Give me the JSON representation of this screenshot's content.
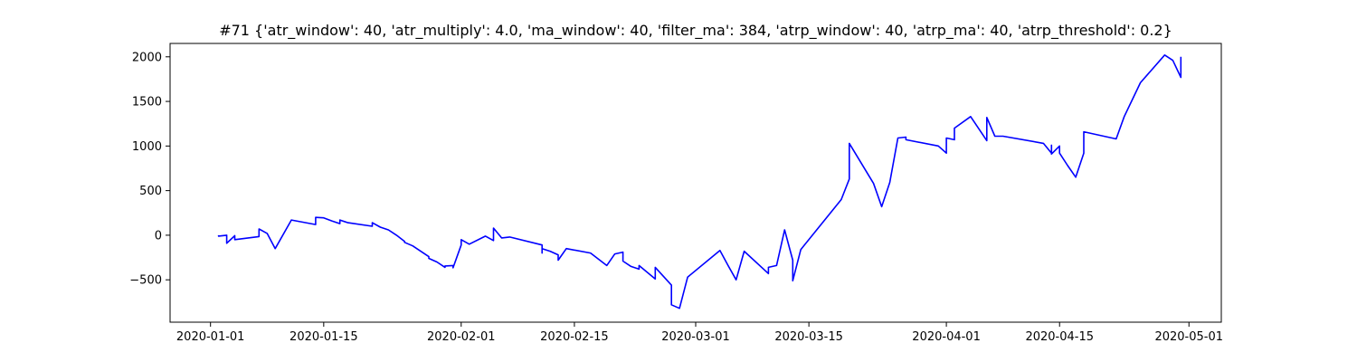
{
  "chart_data": {
    "type": "line",
    "title": "#71 {'atr_window': 40, 'atr_multiply': 4.0, 'ma_window': 40, 'filter_ma': 384, 'atrp_window': 40, 'atrp_ma': 40, 'atrp_threshold': 0.2}",
    "xlabel": "",
    "ylabel": "",
    "x_axis": "date",
    "xlim": [
      "2019-12-27",
      "2020-05-05"
    ],
    "ylim": [
      -975,
      2150
    ],
    "xticks": [
      "2020-01-01",
      "2020-01-15",
      "2020-02-01",
      "2020-02-15",
      "2020-03-01",
      "2020-03-15",
      "2020-04-01",
      "2020-04-15",
      "2020-05-01"
    ],
    "yticks": [
      -500,
      0,
      500,
      1000,
      1500,
      2000
    ],
    "grid": false,
    "legend": "none",
    "colors": {
      "line": "#0000ff",
      "axes": "#000000",
      "background": "#ffffff"
    },
    "series": [
      {
        "points": [
          [
            "2020-01-02",
            0
          ],
          [
            "2020-01-02",
            -10
          ],
          [
            "2020-01-03",
            0
          ],
          [
            "2020-01-03",
            -50
          ],
          [
            "2020-01-03",
            -90
          ],
          [
            "2020-01-04",
            -5
          ],
          [
            "2020-01-04",
            -50
          ],
          [
            "2020-01-07",
            -15
          ],
          [
            "2020-01-07",
            70
          ],
          [
            "2020-01-08",
            20
          ],
          [
            "2020-01-09",
            -150
          ],
          [
            "2020-01-11",
            170
          ],
          [
            "2020-01-14",
            120
          ],
          [
            "2020-01-14",
            200
          ],
          [
            "2020-01-15",
            195
          ],
          [
            "2020-01-16",
            160
          ],
          [
            "2020-01-17",
            130
          ],
          [
            "2020-01-17",
            170
          ],
          [
            "2020-01-18",
            140
          ],
          [
            "2020-01-21",
            100
          ],
          [
            "2020-01-21",
            140
          ],
          [
            "2020-01-22",
            90
          ],
          [
            "2020-01-23",
            60
          ],
          [
            "2020-01-24",
            0
          ],
          [
            "2020-01-25",
            -70
          ],
          [
            "2020-01-25",
            -80
          ],
          [
            "2020-01-26",
            -120
          ],
          [
            "2020-01-28",
            -240
          ],
          [
            "2020-01-28",
            -260
          ],
          [
            "2020-01-29",
            -300
          ],
          [
            "2020-01-30",
            -360
          ],
          [
            "2020-01-30",
            -345
          ],
          [
            "2020-01-31",
            -340
          ],
          [
            "2020-01-31",
            -365
          ],
          [
            "2020-02-01",
            -110
          ],
          [
            "2020-02-01",
            -50
          ],
          [
            "2020-02-02",
            -100
          ],
          [
            "2020-02-04",
            -10
          ],
          [
            "2020-02-05",
            -60
          ],
          [
            "2020-02-05",
            80
          ],
          [
            "2020-02-06",
            -30
          ],
          [
            "2020-02-07",
            -20
          ],
          [
            "2020-02-11",
            -110
          ],
          [
            "2020-02-11",
            -200
          ],
          [
            "2020-02-11",
            -150
          ],
          [
            "2020-02-12",
            -180
          ],
          [
            "2020-02-13",
            -220
          ],
          [
            "2020-02-13",
            -280
          ],
          [
            "2020-02-14",
            -150
          ],
          [
            "2020-02-17",
            -200
          ],
          [
            "2020-02-19",
            -340
          ],
          [
            "2020-02-20",
            -210
          ],
          [
            "2020-02-21",
            -190
          ],
          [
            "2020-02-21",
            -290
          ],
          [
            "2020-02-22",
            -350
          ],
          [
            "2020-02-23",
            -380
          ],
          [
            "2020-02-23",
            -340
          ],
          [
            "2020-02-25",
            -490
          ],
          [
            "2020-02-25",
            -360
          ],
          [
            "2020-02-26",
            -460
          ],
          [
            "2020-02-27",
            -560
          ],
          [
            "2020-02-27",
            -780
          ],
          [
            "2020-02-28",
            -820
          ],
          [
            "2020-02-29",
            -470
          ],
          [
            "2020-03-04",
            -170
          ],
          [
            "2020-03-05",
            -340
          ],
          [
            "2020-03-06",
            -500
          ],
          [
            "2020-03-07",
            -180
          ],
          [
            "2020-03-10",
            -430
          ],
          [
            "2020-03-10",
            -360
          ],
          [
            "2020-03-11",
            -340
          ],
          [
            "2020-03-12",
            60
          ],
          [
            "2020-03-13",
            -280
          ],
          [
            "2020-03-13",
            -510
          ],
          [
            "2020-03-14",
            -160
          ],
          [
            "2020-03-19",
            400
          ],
          [
            "2020-03-20",
            630
          ],
          [
            "2020-03-20",
            1030
          ],
          [
            "2020-03-23",
            580
          ],
          [
            "2020-03-24",
            320
          ],
          [
            "2020-03-25",
            590
          ],
          [
            "2020-03-26",
            1090
          ],
          [
            "2020-03-27",
            1100
          ],
          [
            "2020-03-27",
            1070
          ],
          [
            "2020-03-31",
            1000
          ],
          [
            "2020-04-01",
            920
          ],
          [
            "2020-04-01",
            1090
          ],
          [
            "2020-04-02",
            1070
          ],
          [
            "2020-04-02",
            1200
          ],
          [
            "2020-04-04",
            1330
          ],
          [
            "2020-04-06",
            1060
          ],
          [
            "2020-04-06",
            1320
          ],
          [
            "2020-04-07",
            1110
          ],
          [
            "2020-04-08",
            1110
          ],
          [
            "2020-04-13",
            1030
          ],
          [
            "2020-04-14",
            920
          ],
          [
            "2020-04-14",
            1010
          ],
          [
            "2020-04-14",
            910
          ],
          [
            "2020-04-15",
            1000
          ],
          [
            "2020-04-15",
            920
          ],
          [
            "2020-04-16",
            780
          ],
          [
            "2020-04-17",
            650
          ],
          [
            "2020-04-18",
            920
          ],
          [
            "2020-04-18",
            1160
          ],
          [
            "2020-04-22",
            1080
          ],
          [
            "2020-04-23",
            1330
          ],
          [
            "2020-04-25",
            1710
          ],
          [
            "2020-04-28",
            2020
          ],
          [
            "2020-04-29",
            1960
          ],
          [
            "2020-04-30",
            1770
          ],
          [
            "2020-04-30",
            2000
          ]
        ]
      }
    ]
  }
}
